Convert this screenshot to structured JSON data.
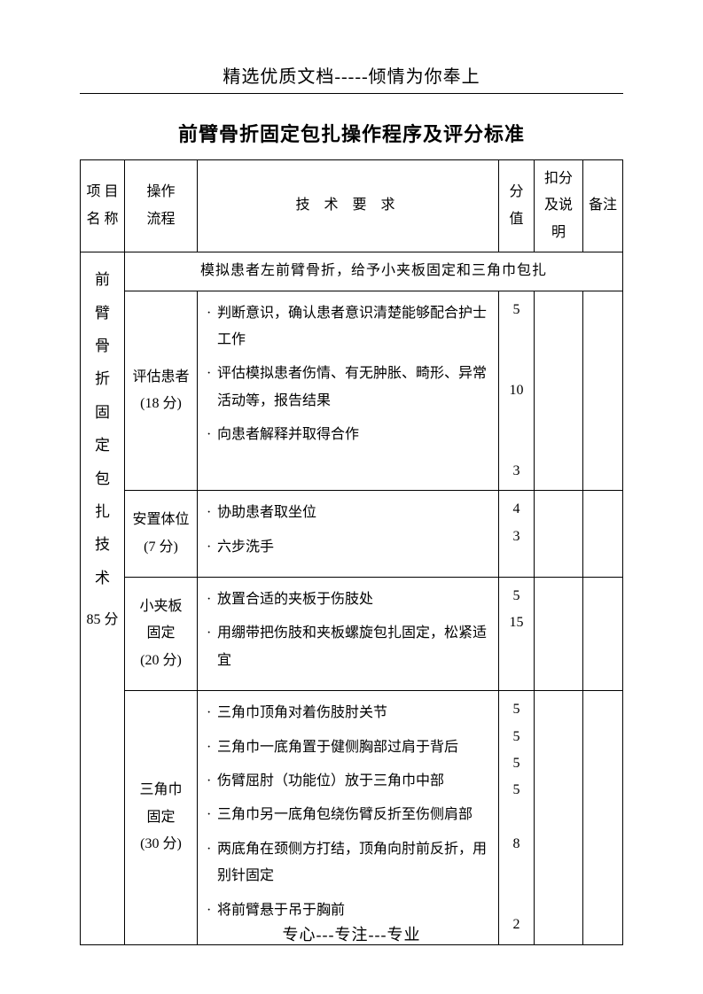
{
  "header_text": "精选优质文档-----倾情为你奉上",
  "title": "前臂骨折固定包扎操作程序及评分标准",
  "footer_text": "专心---专注---专业",
  "columns": {
    "name": "项 目\n名 称",
    "step": "操作\n流程",
    "req": "技 术 要 求",
    "score": "分值",
    "deduct": "扣分及说明",
    "note": "备注"
  },
  "project": {
    "chars": [
      "前",
      "臂",
      "骨",
      "折",
      "固",
      "定",
      "包",
      "扎",
      "技",
      "术"
    ],
    "tail": "85 分"
  },
  "scenario": "模拟患者左前臂骨折，给予小夹板固定和三角巾包扎",
  "rows": [
    {
      "step_label": "评估患者\n(18 分)",
      "items": [
        "判断意识，确认患者意识清楚能够配合护士工作",
        "评估模拟患者伤情、有无肿胀、畸形、异常活动等，报告结果",
        "向患者解释并取得合作"
      ],
      "scores": [
        "5",
        "",
        "",
        "10",
        "",
        "",
        "3"
      ]
    },
    {
      "step_label": "安置体位\n(7 分)",
      "items": [
        "协助患者取坐位",
        "六步洗手"
      ],
      "scores": [
        "4",
        "3"
      ]
    },
    {
      "step_label": "小夹板\n固定\n(20 分)",
      "items": [
        "放置合适的夹板于伤肢处",
        "用绷带把伤肢和夹板螺旋包扎固定，松紧适宜"
      ],
      "scores": [
        "5",
        "15"
      ]
    },
    {
      "step_label": "三角巾\n固定\n(30 分)",
      "items": [
        "三角巾顶角对着伤肢肘关节",
        "三角巾一底角置于健侧胸部过肩于背后",
        "伤臂屈肘（功能位）放于三角巾中部",
        "三角巾另一底角包绕伤臂反折至伤侧肩部",
        "两底角在颈侧方打结，顶角向肘前反折，用别针固定",
        "将前臂悬于吊于胸前"
      ],
      "scores": [
        "5",
        "5",
        "5",
        "5",
        "",
        "8",
        "",
        "",
        "2"
      ]
    }
  ]
}
